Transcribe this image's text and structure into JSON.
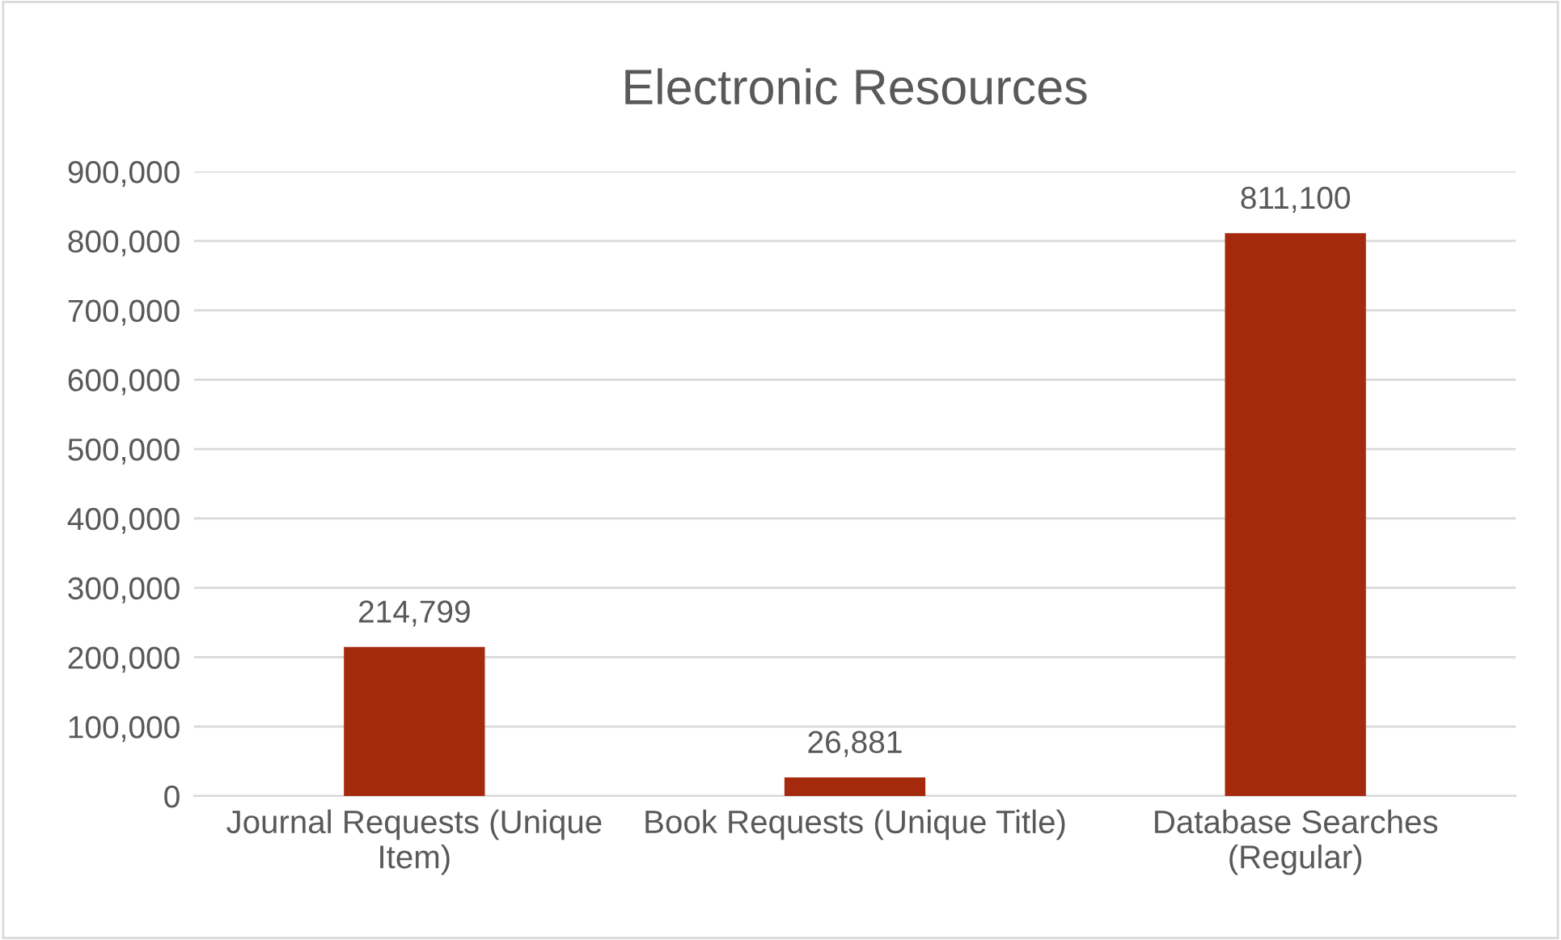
{
  "chart_data": {
    "type": "bar",
    "title": "Electronic Resources",
    "categories": [
      "Journal Requests (Unique Item)",
      "Book Requests (Unique Title)",
      "Database Searches (Regular)"
    ],
    "values": [
      214799,
      26881,
      811100
    ],
    "color": "#a52a0d",
    "ylim": [
      0,
      900000
    ],
    "yticks": [
      {
        "value": 0,
        "label": "0"
      },
      {
        "value": 100000,
        "label": "100,000"
      },
      {
        "value": 200000,
        "label": "200,000"
      },
      {
        "value": 300000,
        "label": "300,000"
      },
      {
        "value": 400000,
        "label": "400,000"
      },
      {
        "value": 500000,
        "label": "500,000"
      },
      {
        "value": 600000,
        "label": "600,000"
      },
      {
        "value": 700000,
        "label": "700,000"
      },
      {
        "value": 800000,
        "label": "800,000"
      },
      {
        "value": 900000,
        "label": "900,000"
      }
    ],
    "grid": "y",
    "value_labels": [
      "214,799",
      "26,881",
      "811,100"
    ]
  }
}
